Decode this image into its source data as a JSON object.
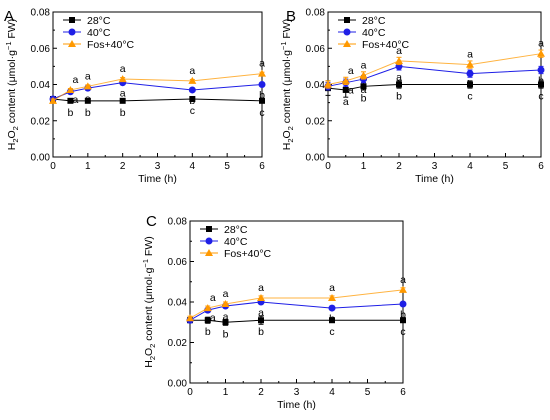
{
  "chart_data": [
    {
      "type": "line",
      "panel_label": "A",
      "xlabel": "Time (h)",
      "ylabel": "H2O2 content (μmol·g−1 FW)",
      "x_ticks": [
        0,
        1,
        2,
        3,
        4,
        5,
        6
      ],
      "y_ticks": [
        "0.00",
        "0.02",
        "0.04",
        "0.06",
        "0.08"
      ],
      "xlim": [
        0,
        6
      ],
      "ylim": [
        0,
        0.08
      ],
      "legend_position": "top-left",
      "x": [
        0,
        0.5,
        1,
        2,
        4,
        6
      ],
      "series": [
        {
          "name": "28°C",
          "color": "#000000",
          "marker": "square",
          "values": [
            0.032,
            0.031,
            0.031,
            0.031,
            0.032,
            0.031
          ],
          "errors": [
            0.001,
            0.0007,
            0.0007,
            0.0007,
            0.0007,
            0.0007
          ],
          "labels": [
            "",
            "b",
            "b",
            "b",
            "c",
            "c"
          ]
        },
        {
          "name": "40°C",
          "color": "#1f1fe6",
          "marker": "circle",
          "values": [
            0.032,
            0.036,
            0.038,
            0.041,
            0.037,
            0.04
          ],
          "errors": [
            0.001,
            0.001,
            0.001,
            0.001,
            0.001,
            0.001
          ],
          "labels": [
            "",
            "a",
            "a",
            "a",
            "b",
            "b"
          ]
        },
        {
          "name": "Fos+40°C",
          "color": "#ff9900",
          "marker": "triangle",
          "values": [
            0.031,
            0.037,
            0.039,
            0.043,
            0.042,
            0.046
          ],
          "errors": [
            0.001,
            0.0008,
            0.0008,
            0.0008,
            0.0008,
            0.0008
          ],
          "labels": [
            "",
            "a",
            "a",
            "a",
            "a",
            "a"
          ]
        }
      ]
    },
    {
      "type": "line",
      "panel_label": "B",
      "xlabel": "Time (h)",
      "ylabel": "H2O2 content (μmol·g−1 FW)",
      "x_ticks": [
        0,
        1,
        2,
        3,
        4,
        5,
        6
      ],
      "y_ticks": [
        "0.00",
        "0.02",
        "0.04",
        "0.06",
        "0.08"
      ],
      "xlim": [
        0,
        6
      ],
      "ylim": [
        0,
        0.08
      ],
      "legend_position": "top-left",
      "x": [
        0,
        0.5,
        1,
        2,
        4,
        6
      ],
      "series": [
        {
          "name": "28°C",
          "color": "#000000",
          "marker": "square",
          "values": [
            0.038,
            0.037,
            0.039,
            0.04,
            0.04,
            0.04
          ],
          "errors": [
            0.004,
            0.004,
            0.002,
            0.002,
            0.002,
            0.002
          ],
          "labels": [
            "",
            "a",
            "b",
            "b",
            "c",
            "c"
          ]
        },
        {
          "name": "40°C",
          "color": "#1f1fe6",
          "marker": "circle",
          "values": [
            0.039,
            0.041,
            0.043,
            0.05,
            0.046,
            0.048
          ],
          "errors": [
            0.002,
            0.002,
            0.002,
            0.002,
            0.002,
            0.002
          ],
          "labels": [
            "",
            "a",
            "a",
            "a",
            "b",
            "b"
          ]
        },
        {
          "name": "Fos+40°C",
          "color": "#ff9900",
          "marker": "triangle",
          "values": [
            0.04,
            0.042,
            0.045,
            0.053,
            0.051,
            0.057
          ],
          "errors": [
            0.002,
            0.002,
            0.002,
            0.002,
            0.002,
            0.002
          ],
          "labels": [
            "",
            "a",
            "a",
            "a",
            "a",
            "a"
          ]
        }
      ]
    },
    {
      "type": "line",
      "panel_label": "C",
      "xlabel": "Time (h)",
      "ylabel": "H2O2 content (μmol·g−1 FW)",
      "x_ticks": [
        0,
        1,
        2,
        3,
        4,
        5,
        6
      ],
      "y_ticks": [
        "0.00",
        "0.02",
        "0.04",
        "0.06",
        "0.08"
      ],
      "xlim": [
        0,
        6
      ],
      "ylim": [
        0,
        0.08
      ],
      "legend_position": "top-left",
      "x": [
        0,
        0.5,
        1,
        2,
        4,
        6
      ],
      "series": [
        {
          "name": "28°C",
          "color": "#000000",
          "marker": "square",
          "values": [
            0.031,
            0.031,
            0.03,
            0.031,
            0.031,
            0.031
          ],
          "errors": [
            0.001,
            0.0015,
            0.0015,
            0.002,
            0.001,
            0.001
          ],
          "labels": [
            "",
            "b",
            "b",
            "b",
            "c",
            "c"
          ]
        },
        {
          "name": "40°C",
          "color": "#1f1fe6",
          "marker": "circle",
          "values": [
            0.031,
            0.036,
            0.038,
            0.04,
            0.037,
            0.039
          ],
          "errors": [
            0.001,
            0.001,
            0.001,
            0.001,
            0.001,
            0.001
          ],
          "labels": [
            "",
            "a",
            "a",
            "a",
            "b",
            "b"
          ]
        },
        {
          "name": "Fos+40°C",
          "color": "#ff9900",
          "marker": "triangle",
          "values": [
            0.032,
            0.037,
            0.039,
            0.042,
            0.042,
            0.046
          ],
          "errors": [
            0.001,
            0.001,
            0.001,
            0.001,
            0.001,
            0.001
          ],
          "labels": [
            "",
            "a",
            "a",
            "a",
            "a",
            "a"
          ]
        }
      ]
    }
  ]
}
